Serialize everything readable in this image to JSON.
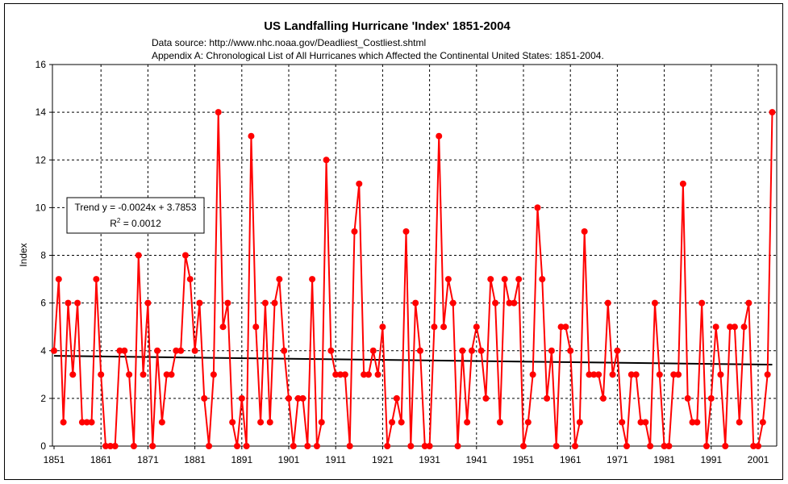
{
  "chart_data": {
    "type": "line",
    "title": "US Landfalling Hurricane 'Index' 1851-2004",
    "subtitle_lines": [
      "Data source: http://www.nhc.noaa.gov/Deadliest_Costliest.shtml",
      "Appendix A: Chronological List of All Hurricanes which Affected the Continental United States: 1851-2004."
    ],
    "xlabel": "",
    "ylabel": "Index",
    "xlim": [
      1851,
      2004
    ],
    "ylim": [
      0,
      16
    ],
    "yticks": [
      0,
      2,
      4,
      6,
      8,
      10,
      12,
      14,
      16
    ],
    "xticks": [
      1851,
      1861,
      1871,
      1881,
      1891,
      1901,
      1911,
      1921,
      1931,
      1941,
      1951,
      1961,
      1971,
      1981,
      1991,
      2001
    ],
    "grid": true,
    "series": [
      {
        "name": "Index",
        "color": "#ff0000",
        "start_year": 1851,
        "values": [
          4,
          7,
          1,
          6,
          3,
          6,
          1,
          1,
          1,
          7,
          3,
          0,
          0,
          0,
          4,
          4,
          3,
          0,
          8,
          3,
          6,
          0,
          4,
          1,
          3,
          3,
          4,
          4,
          8,
          7,
          4,
          6,
          2,
          0,
          3,
          14,
          5,
          6,
          1,
          0,
          2,
          0,
          13,
          5,
          1,
          6,
          1,
          6,
          7,
          4,
          2,
          0,
          2,
          2,
          0,
          7,
          0,
          1,
          12,
          4,
          3,
          3,
          3,
          0,
          9,
          11,
          3,
          3,
          4,
          3,
          5,
          0,
          1,
          2,
          1,
          9,
          0,
          6,
          4,
          0,
          0,
          5,
          13,
          5,
          7,
          6,
          0,
          4,
          1,
          4,
          5,
          4,
          2,
          7,
          6,
          1,
          7,
          6,
          6,
          7,
          0,
          1,
          3,
          10,
          7,
          2,
          4,
          0,
          5,
          5,
          4,
          0,
          1,
          9,
          3,
          3,
          3,
          2,
          6,
          3,
          4,
          1,
          0,
          3,
          3,
          1,
          1,
          0,
          6,
          3,
          0,
          0,
          3,
          3,
          11,
          2,
          1,
          1,
          6,
          0,
          2,
          5,
          3,
          0,
          5,
          5,
          1,
          5,
          6,
          0,
          0,
          1,
          3,
          14
        ]
      }
    ],
    "trendline": {
      "label_line1": "Trend y = -0.0024x + 3.7853",
      "label_line2_prefix": "R",
      "label_line2_sup": "2",
      "label_line2_suffix": " = 0.0012",
      "slope": -0.0024,
      "intercept": 3.7853,
      "color": "#000000"
    }
  }
}
